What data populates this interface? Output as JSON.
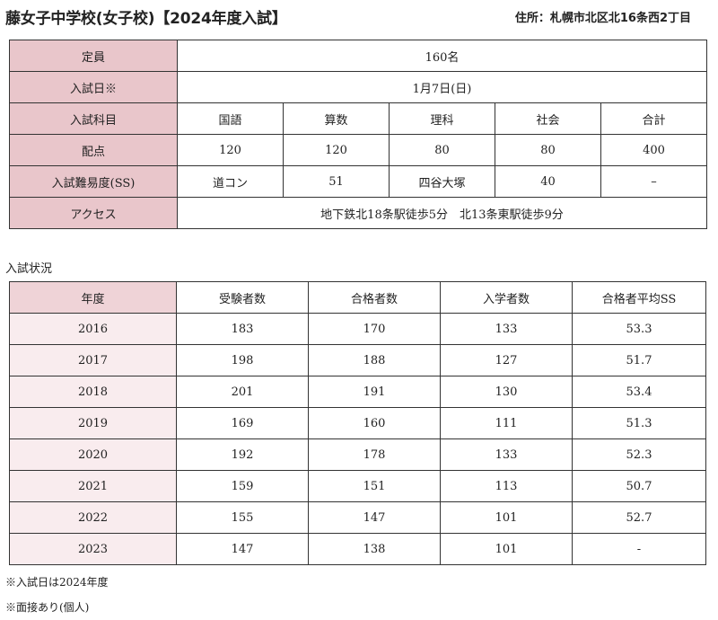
{
  "header": {
    "title": "藤女子中学校(女子校)【2024年度入試】",
    "address": "住所：札幌市北区北16条西2丁目"
  },
  "info": {
    "capacity_label": "定員",
    "capacity_value": "160名",
    "exam_date_label": "入試日※",
    "exam_date_value": "1月7日(日)",
    "subjects_label": "入試科目",
    "subjects": [
      "国語",
      "算数",
      "理科",
      "社会",
      "合計"
    ],
    "points_label": "配点",
    "points": [
      "120",
      "120",
      "80",
      "80",
      "400"
    ],
    "difficulty_label": "入試難易度(SS)",
    "difficulty": [
      "道コン",
      "51",
      "四谷大塚",
      "40",
      "–"
    ],
    "access_label": "アクセス",
    "access_value": "地下鉄北18条駅徒歩5分　北13条東駅徒歩9分"
  },
  "status": {
    "section_label": "入試状況",
    "headers": [
      "年度",
      "受験者数",
      "合格者数",
      "入学者数",
      "合格者平均SS"
    ],
    "rows": [
      [
        "2016",
        "183",
        "170",
        "133",
        "53.3"
      ],
      [
        "2017",
        "198",
        "188",
        "127",
        "51.7"
      ],
      [
        "2018",
        "201",
        "191",
        "130",
        "53.4"
      ],
      [
        "2019",
        "169",
        "160",
        "111",
        "51.3"
      ],
      [
        "2020",
        "192",
        "178",
        "133",
        "52.3"
      ],
      [
        "2021",
        "159",
        "151",
        "113",
        "50.7"
      ],
      [
        "2022",
        "155",
        "147",
        "101",
        "52.7"
      ],
      [
        "2023",
        "147",
        "138",
        "101",
        "-"
      ]
    ]
  },
  "notes": [
    "※入試日は2024年度",
    "※面接あり(個人)"
  ],
  "colors": {
    "label_pink": "#e9c6cb",
    "header_pink": "#efd3d7",
    "year_cell_pink": "#f9ecee"
  }
}
